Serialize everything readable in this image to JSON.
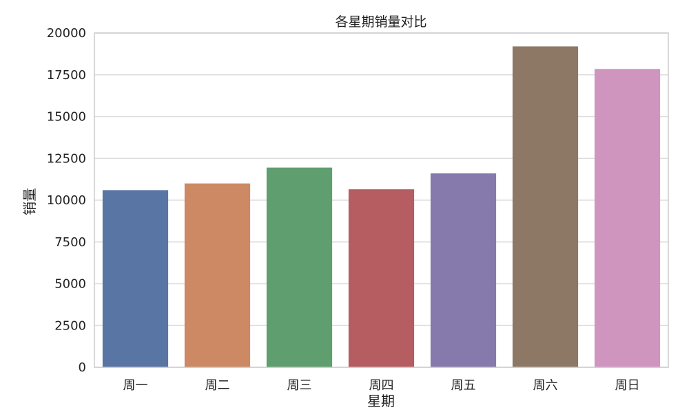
{
  "chart_data": {
    "type": "bar",
    "title": "各星期销量对比",
    "xlabel": "星期",
    "ylabel": "销量",
    "categories": [
      "周一",
      "周二",
      "周三",
      "周四",
      "周五",
      "周六",
      "周日"
    ],
    "values": [
      10600,
      11000,
      11950,
      10650,
      11600,
      19200,
      17850
    ],
    "colors": [
      "#5875a4",
      "#cc8963",
      "#5f9e6e",
      "#b55d60",
      "#857aab",
      "#8d7866",
      "#d095bf"
    ],
    "ylim": [
      0,
      20000
    ],
    "yticks": [
      0,
      2500,
      5000,
      7500,
      10000,
      12500,
      15000,
      17500,
      20000
    ],
    "grid": true,
    "legend": false
  }
}
